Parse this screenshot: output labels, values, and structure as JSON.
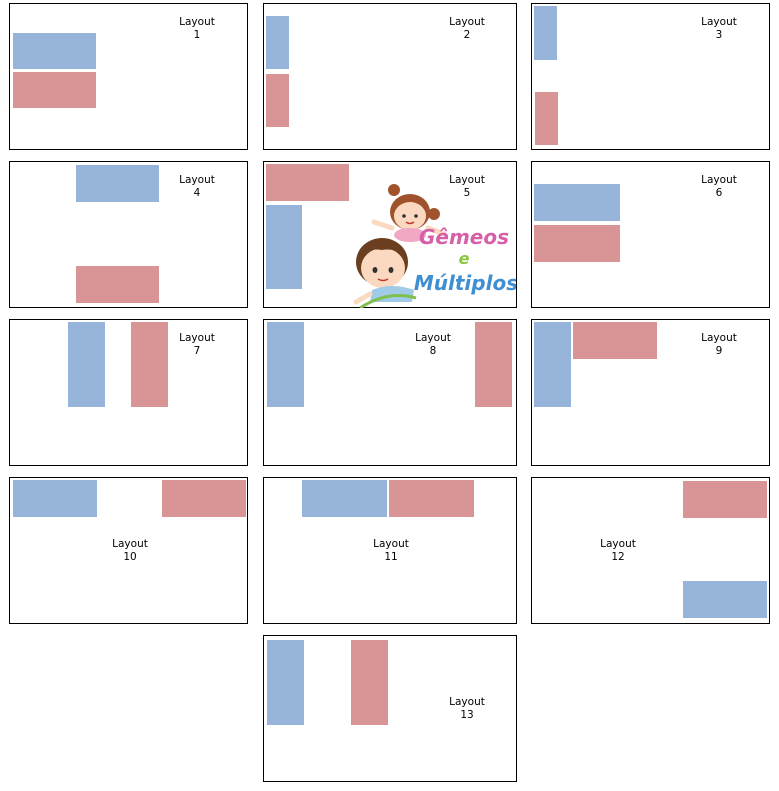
{
  "colors": {
    "blue": "#96b3d9",
    "red": "#d99596"
  },
  "layouts": [
    {
      "word": "Layout",
      "number": "1"
    },
    {
      "word": "Layout",
      "number": "2"
    },
    {
      "word": "Layout",
      "number": "3"
    },
    {
      "word": "Layout",
      "number": "4"
    },
    {
      "word": "Layout",
      "number": "5"
    },
    {
      "word": "Layout",
      "number": "6"
    },
    {
      "word": "Layout",
      "number": "7"
    },
    {
      "word": "Layout",
      "number": "8"
    },
    {
      "word": "Layout",
      "number": "9"
    },
    {
      "word": "Layout",
      "number": "10"
    },
    {
      "word": "Layout",
      "number": "11"
    },
    {
      "word": "Layout",
      "number": "12"
    },
    {
      "word": "Layout",
      "number": "13"
    }
  ],
  "logo": {
    "line1": "Gêmeos",
    "line2": "e",
    "line3": "Múltiplos"
  }
}
